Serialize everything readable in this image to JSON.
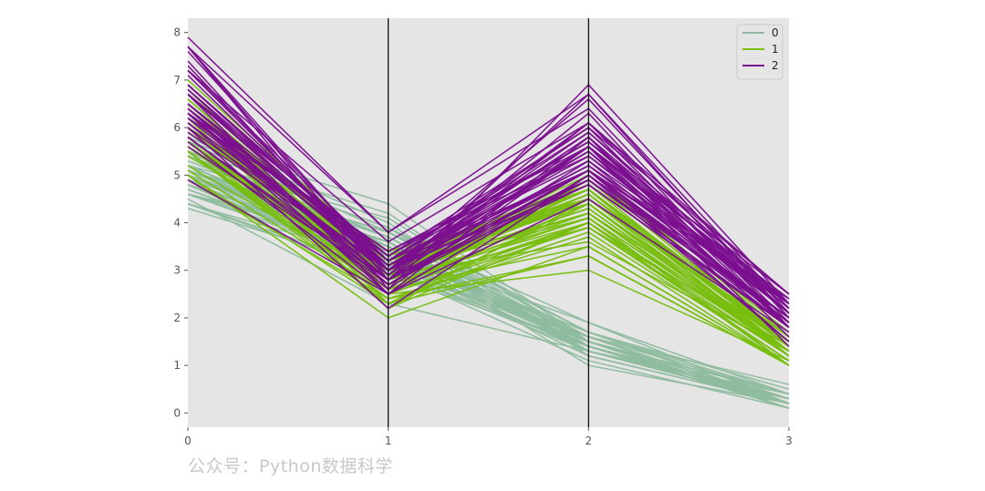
{
  "watermark": "公众号：Python数据科学",
  "chart_data": {
    "type": "line",
    "subtype": "parallel-coordinates",
    "title": "",
    "xlabel": "",
    "ylabel": "",
    "categories": [
      "0",
      "1",
      "2",
      "3"
    ],
    "x": [
      0,
      1,
      2,
      3
    ],
    "ylim": [
      -0.3,
      8.3
    ],
    "yticks": [
      0,
      1,
      2,
      3,
      4,
      5,
      6,
      7,
      8
    ],
    "grid": false,
    "background": "#e5e5e5",
    "legend_position": "top-right",
    "series": [
      {
        "name": "0",
        "color": "#8fbc9f",
        "lines": [
          [
            5.1,
            3.5,
            1.4,
            0.2
          ],
          [
            4.9,
            3.0,
            1.4,
            0.2
          ],
          [
            4.7,
            3.2,
            1.3,
            0.2
          ],
          [
            4.6,
            3.1,
            1.5,
            0.2
          ],
          [
            5.0,
            3.6,
            1.4,
            0.2
          ],
          [
            5.4,
            3.9,
            1.7,
            0.4
          ],
          [
            4.6,
            3.4,
            1.4,
            0.3
          ],
          [
            5.0,
            3.4,
            1.5,
            0.2
          ],
          [
            4.4,
            2.9,
            1.4,
            0.2
          ],
          [
            4.9,
            3.1,
            1.5,
            0.1
          ],
          [
            5.4,
            3.7,
            1.5,
            0.2
          ],
          [
            4.8,
            3.4,
            1.6,
            0.2
          ],
          [
            4.8,
            3.0,
            1.4,
            0.1
          ],
          [
            4.3,
            3.0,
            1.1,
            0.1
          ],
          [
            5.8,
            4.0,
            1.2,
            0.2
          ],
          [
            5.7,
            4.4,
            1.5,
            0.4
          ],
          [
            5.4,
            3.9,
            1.3,
            0.4
          ],
          [
            5.1,
            3.5,
            1.4,
            0.3
          ],
          [
            5.7,
            3.8,
            1.7,
            0.3
          ],
          [
            5.1,
            3.8,
            1.5,
            0.3
          ],
          [
            5.4,
            3.4,
            1.7,
            0.2
          ],
          [
            5.1,
            3.7,
            1.5,
            0.4
          ],
          [
            4.6,
            3.6,
            1.0,
            0.2
          ],
          [
            5.1,
            3.3,
            1.7,
            0.5
          ],
          [
            4.8,
            3.4,
            1.9,
            0.2
          ],
          [
            5.0,
            3.0,
            1.6,
            0.2
          ],
          [
            5.0,
            3.4,
            1.6,
            0.4
          ],
          [
            5.2,
            3.5,
            1.5,
            0.2
          ],
          [
            5.2,
            3.4,
            1.4,
            0.2
          ],
          [
            4.7,
            3.2,
            1.6,
            0.2
          ],
          [
            4.8,
            3.1,
            1.6,
            0.2
          ],
          [
            5.4,
            3.4,
            1.5,
            0.4
          ],
          [
            5.2,
            4.1,
            1.5,
            0.1
          ],
          [
            5.5,
            4.2,
            1.4,
            0.2
          ],
          [
            4.9,
            3.1,
            1.5,
            0.2
          ],
          [
            5.0,
            3.2,
            1.2,
            0.2
          ],
          [
            5.5,
            3.5,
            1.3,
            0.2
          ],
          [
            4.9,
            3.6,
            1.4,
            0.1
          ],
          [
            4.4,
            3.0,
            1.3,
            0.2
          ],
          [
            5.1,
            3.4,
            1.5,
            0.2
          ],
          [
            5.0,
            3.5,
            1.3,
            0.3
          ],
          [
            4.5,
            2.3,
            1.3,
            0.3
          ],
          [
            4.4,
            3.2,
            1.3,
            0.2
          ],
          [
            5.0,
            3.5,
            1.6,
            0.6
          ],
          [
            5.1,
            3.8,
            1.9,
            0.4
          ],
          [
            4.8,
            3.0,
            1.4,
            0.3
          ],
          [
            5.1,
            3.8,
            1.6,
            0.2
          ],
          [
            4.6,
            3.2,
            1.4,
            0.2
          ],
          [
            5.3,
            3.7,
            1.5,
            0.2
          ],
          [
            5.0,
            3.3,
            1.4,
            0.2
          ]
        ]
      },
      {
        "name": "1",
        "color": "#78be0f",
        "lines": [
          [
            7.0,
            3.2,
            4.7,
            1.4
          ],
          [
            6.4,
            3.2,
            4.5,
            1.5
          ],
          [
            6.9,
            3.1,
            4.9,
            1.5
          ],
          [
            5.5,
            2.3,
            4.0,
            1.3
          ],
          [
            6.5,
            2.8,
            4.6,
            1.5
          ],
          [
            5.7,
            2.8,
            4.5,
            1.3
          ],
          [
            6.3,
            3.3,
            4.7,
            1.6
          ],
          [
            4.9,
            2.4,
            3.3,
            1.0
          ],
          [
            6.6,
            2.9,
            4.6,
            1.3
          ],
          [
            5.2,
            2.7,
            3.9,
            1.4
          ],
          [
            5.0,
            2.0,
            3.5,
            1.0
          ],
          [
            5.9,
            3.0,
            4.2,
            1.5
          ],
          [
            6.0,
            2.2,
            4.0,
            1.0
          ],
          [
            6.1,
            2.9,
            4.7,
            1.4
          ],
          [
            5.6,
            2.9,
            3.6,
            1.3
          ],
          [
            6.7,
            3.1,
            4.4,
            1.4
          ],
          [
            5.6,
            3.0,
            4.5,
            1.5
          ],
          [
            5.8,
            2.7,
            4.1,
            1.0
          ],
          [
            6.2,
            2.2,
            4.5,
            1.5
          ],
          [
            5.6,
            2.5,
            3.9,
            1.1
          ],
          [
            5.9,
            3.2,
            4.8,
            1.8
          ],
          [
            6.1,
            2.8,
            4.0,
            1.3
          ],
          [
            6.3,
            2.5,
            4.9,
            1.5
          ],
          [
            6.1,
            2.8,
            4.7,
            1.2
          ],
          [
            6.4,
            2.9,
            4.3,
            1.3
          ],
          [
            6.6,
            3.0,
            4.4,
            1.4
          ],
          [
            6.8,
            2.8,
            4.8,
            1.4
          ],
          [
            6.7,
            3.0,
            5.0,
            1.7
          ],
          [
            6.0,
            2.9,
            4.5,
            1.5
          ],
          [
            5.7,
            2.6,
            3.5,
            1.0
          ],
          [
            5.5,
            2.4,
            3.8,
            1.1
          ],
          [
            5.5,
            2.4,
            3.7,
            1.0
          ],
          [
            5.8,
            2.7,
            3.9,
            1.2
          ],
          [
            6.0,
            2.7,
            5.1,
            1.6
          ],
          [
            5.4,
            3.0,
            4.5,
            1.5
          ],
          [
            6.0,
            3.4,
            4.5,
            1.6
          ],
          [
            6.7,
            3.1,
            4.7,
            1.5
          ],
          [
            6.3,
            2.3,
            4.4,
            1.3
          ],
          [
            5.6,
            3.0,
            4.1,
            1.3
          ],
          [
            5.5,
            2.5,
            4.0,
            1.3
          ],
          [
            5.5,
            2.6,
            4.4,
            1.2
          ],
          [
            6.1,
            3.0,
            4.6,
            1.4
          ],
          [
            5.8,
            2.6,
            4.0,
            1.2
          ],
          [
            5.0,
            2.3,
            3.3,
            1.0
          ],
          [
            5.6,
            2.7,
            4.2,
            1.3
          ],
          [
            5.7,
            3.0,
            4.2,
            1.2
          ],
          [
            5.7,
            2.9,
            4.2,
            1.3
          ],
          [
            6.2,
            2.9,
            4.3,
            1.3
          ],
          [
            5.1,
            2.5,
            3.0,
            1.1
          ],
          [
            5.7,
            2.8,
            4.1,
            1.3
          ]
        ]
      },
      {
        "name": "2",
        "color": "#7b0f8f",
        "lines": [
          [
            6.3,
            3.3,
            6.0,
            2.5
          ],
          [
            5.8,
            2.7,
            5.1,
            1.9
          ],
          [
            7.1,
            3.0,
            5.9,
            2.1
          ],
          [
            6.3,
            2.9,
            5.6,
            1.8
          ],
          [
            6.5,
            3.0,
            5.8,
            2.2
          ],
          [
            7.6,
            3.0,
            6.6,
            2.1
          ],
          [
            4.9,
            2.5,
            4.5,
            1.7
          ],
          [
            7.3,
            2.9,
            6.3,
            1.8
          ],
          [
            6.7,
            2.5,
            5.8,
            1.8
          ],
          [
            7.2,
            3.6,
            6.1,
            2.5
          ],
          [
            6.5,
            3.2,
            5.1,
            2.0
          ],
          [
            6.4,
            2.7,
            5.3,
            1.9
          ],
          [
            6.8,
            3.0,
            5.5,
            2.1
          ],
          [
            5.7,
            2.5,
            5.0,
            2.0
          ],
          [
            5.8,
            2.8,
            5.1,
            2.4
          ],
          [
            6.4,
            3.2,
            5.3,
            2.3
          ],
          [
            6.5,
            3.0,
            5.5,
            1.8
          ],
          [
            7.7,
            3.8,
            6.7,
            2.2
          ],
          [
            7.7,
            2.6,
            6.9,
            2.3
          ],
          [
            6.0,
            2.2,
            5.0,
            1.5
          ],
          [
            6.9,
            3.2,
            5.7,
            2.3
          ],
          [
            5.6,
            2.8,
            4.9,
            2.0
          ],
          [
            7.7,
            2.8,
            6.7,
            2.0
          ],
          [
            6.3,
            2.7,
            4.9,
            1.8
          ],
          [
            6.7,
            3.3,
            5.7,
            2.1
          ],
          [
            7.2,
            3.2,
            6.0,
            1.8
          ],
          [
            6.2,
            2.8,
            4.8,
            1.8
          ],
          [
            6.1,
            3.0,
            4.9,
            1.8
          ],
          [
            6.4,
            2.8,
            5.6,
            2.1
          ],
          [
            7.2,
            3.0,
            5.8,
            1.6
          ],
          [
            7.4,
            2.8,
            6.1,
            1.9
          ],
          [
            7.9,
            3.8,
            6.4,
            2.0
          ],
          [
            6.4,
            2.8,
            5.6,
            2.2
          ],
          [
            6.3,
            2.8,
            5.1,
            1.5
          ],
          [
            6.1,
            2.6,
            5.6,
            1.4
          ],
          [
            7.7,
            3.0,
            6.1,
            2.3
          ],
          [
            6.3,
            3.4,
            5.6,
            2.4
          ],
          [
            6.4,
            3.1,
            5.5,
            1.8
          ],
          [
            6.0,
            3.0,
            4.8,
            1.8
          ],
          [
            6.9,
            3.1,
            5.4,
            2.1
          ],
          [
            6.7,
            3.1,
            5.6,
            2.4
          ],
          [
            6.9,
            3.1,
            5.1,
            2.3
          ],
          [
            5.8,
            2.7,
            5.1,
            1.9
          ],
          [
            6.8,
            3.2,
            5.9,
            2.3
          ],
          [
            6.7,
            3.3,
            5.7,
            2.5
          ],
          [
            6.7,
            3.0,
            5.2,
            2.3
          ],
          [
            6.3,
            2.5,
            5.0,
            1.9
          ],
          [
            6.5,
            3.0,
            5.2,
            2.0
          ],
          [
            6.2,
            3.4,
            5.4,
            2.3
          ],
          [
            5.9,
            3.0,
            5.1,
            1.8
          ]
        ]
      }
    ]
  }
}
